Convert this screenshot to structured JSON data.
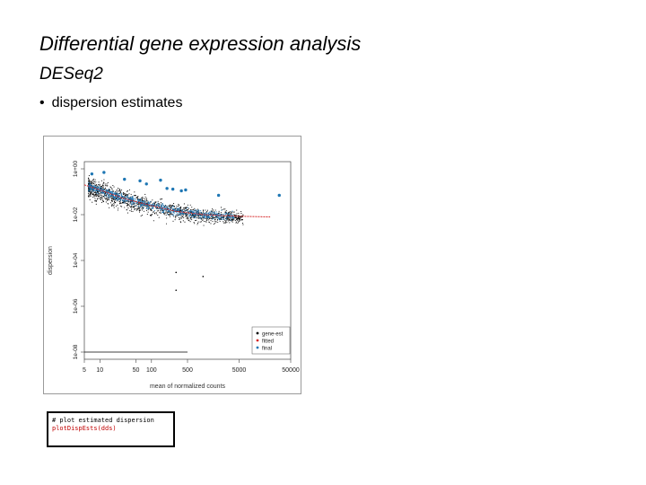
{
  "slide": {
    "title": "Differential gene expression analysis",
    "subtitle": "DESeq2",
    "bullet": "dispersion estimates"
  },
  "code": {
    "comment": "# plot estimated dispersion",
    "call": "plotDispEsts(dds)"
  },
  "chart_data": {
    "type": "scatter",
    "xlabel": "mean of normalized counts",
    "ylabel": "dispersion",
    "xscale": "log",
    "yscale": "log",
    "xlim": [
      5,
      50000
    ],
    "ylim": [
      1e-08,
      1
    ],
    "x_ticks": [
      {
        "value": 5,
        "label": "5"
      },
      {
        "value": 10,
        "label": "10"
      },
      {
        "value": 50,
        "label": "50"
      },
      {
        "value": 100,
        "label": "100"
      },
      {
        "value": 500,
        "label": "500"
      },
      {
        "value": 5000,
        "label": "5000"
      },
      {
        "value": 50000,
        "label": "50000"
      }
    ],
    "y_ticks": [
      {
        "value": 1,
        "label": "1e+00"
      },
      {
        "value": 0.01,
        "label": "1e-02"
      },
      {
        "value": 0.0001,
        "label": "1e-04"
      },
      {
        "value": 1e-06,
        "label": "1e-06"
      },
      {
        "value": 1e-08,
        "label": "1e-08"
      }
    ],
    "legend": {
      "position": "bottom-right",
      "entries": [
        "gene-est",
        "fitted",
        "final"
      ]
    },
    "colors": {
      "gene_est": "#000000",
      "fitted": "#d62728",
      "final": "#1f77b4"
    },
    "fitted_curve": [
      {
        "x": 5,
        "y": 0.2
      },
      {
        "x": 10,
        "y": 0.12
      },
      {
        "x": 30,
        "y": 0.05
      },
      {
        "x": 100,
        "y": 0.025
      },
      {
        "x": 300,
        "y": 0.014
      },
      {
        "x": 1000,
        "y": 0.01
      },
      {
        "x": 5000,
        "y": 0.0085
      },
      {
        "x": 20000,
        "y": 0.008
      }
    ],
    "final_outliers": [
      {
        "x": 7,
        "y": 0.6
      },
      {
        "x": 12,
        "y": 0.7
      },
      {
        "x": 30,
        "y": 0.35
      },
      {
        "x": 60,
        "y": 0.3
      },
      {
        "x": 80,
        "y": 0.22
      },
      {
        "x": 150,
        "y": 0.32
      },
      {
        "x": 200,
        "y": 0.14
      },
      {
        "x": 260,
        "y": 0.13
      },
      {
        "x": 380,
        "y": 0.11
      },
      {
        "x": 460,
        "y": 0.12
      },
      {
        "x": 2000,
        "y": 0.07
      },
      {
        "x": 30000,
        "y": 0.07
      }
    ],
    "gene_est_outliers": [
      {
        "x": 300,
        "y": 5e-06
      },
      {
        "x": 1000,
        "y": 2e-05
      },
      {
        "x": 300,
        "y": 3e-05
      }
    ],
    "low_disp_floor": {
      "y": 1e-08,
      "x_from": 5,
      "x_to": 500
    }
  }
}
